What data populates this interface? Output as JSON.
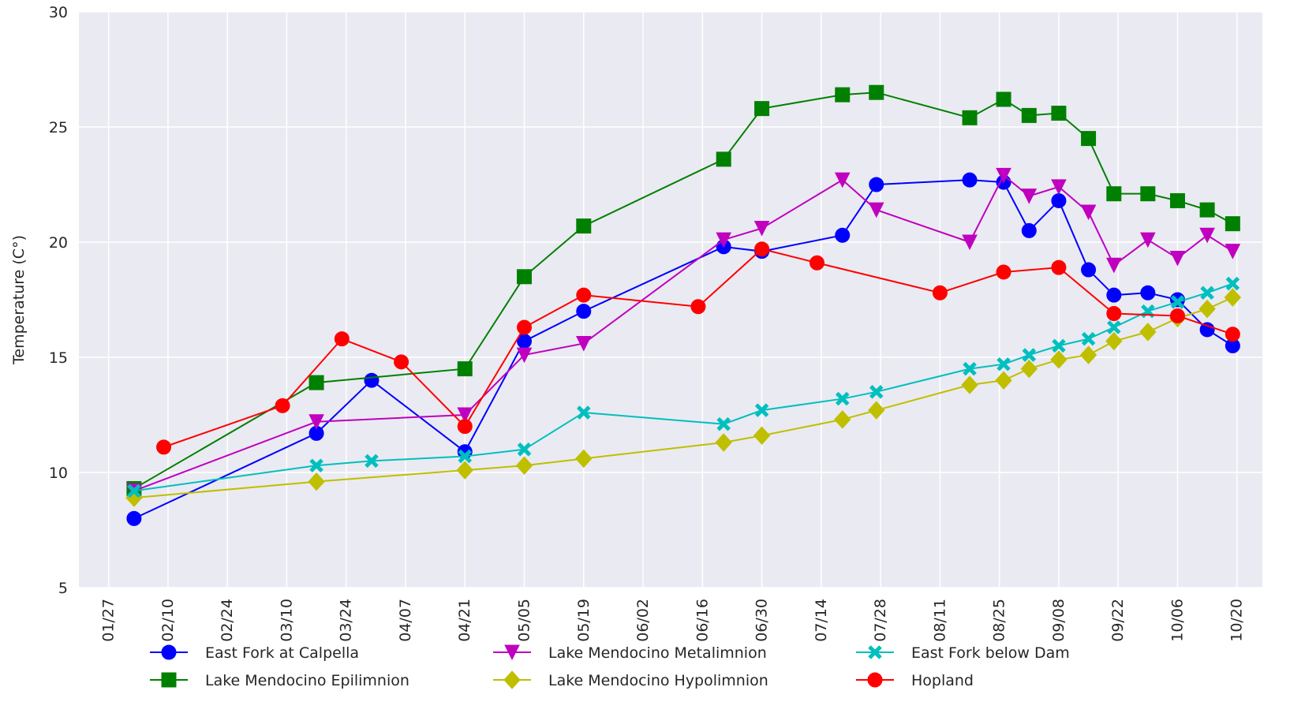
{
  "chart_data": {
    "type": "line",
    "ylabel": "Temperature (C°)",
    "ylim": [
      5,
      30
    ],
    "yticks": [
      5,
      10,
      15,
      20,
      25,
      30
    ],
    "xlim": [
      "01/20",
      "10/26"
    ],
    "xticks": [
      "01/27",
      "02/10",
      "02/24",
      "03/10",
      "03/24",
      "04/07",
      "04/21",
      "05/05",
      "05/19",
      "06/02",
      "06/16",
      "06/30",
      "07/14",
      "07/28",
      "08/11",
      "08/25",
      "09/08",
      "09/22",
      "10/06",
      "10/20"
    ],
    "grid": true,
    "legend": "lower center",
    "series": [
      {
        "name": "East Fork at Calpella",
        "color": "#0000ff",
        "marker": "circle",
        "x": [
          "02/02",
          "03/17",
          "03/30",
          "04/21",
          "05/05",
          "05/19",
          "06/21",
          "06/30",
          "07/19",
          "07/27",
          "08/18",
          "08/26",
          "09/01",
          "09/08",
          "09/15",
          "09/21",
          "09/29",
          "10/06",
          "10/13",
          "10/19"
        ],
        "values": [
          8.0,
          11.7,
          14.0,
          10.9,
          15.7,
          17.0,
          19.8,
          19.6,
          20.3,
          22.5,
          22.7,
          22.6,
          20.5,
          21.8,
          18.8,
          17.7,
          17.8,
          17.5,
          16.2,
          15.5
        ]
      },
      {
        "name": "Lake Mendocino Epilimnion",
        "color": "#008000",
        "marker": "square",
        "x": [
          "02/02",
          "03/17",
          "04/21",
          "05/05",
          "05/19",
          "06/21",
          "06/30",
          "07/19",
          "07/27",
          "08/18",
          "08/26",
          "09/01",
          "09/08",
          "09/15",
          "09/21",
          "09/29",
          "10/06",
          "10/13",
          "10/19"
        ],
        "values": [
          9.3,
          13.9,
          14.5,
          18.5,
          20.7,
          23.6,
          25.8,
          26.4,
          26.5,
          25.4,
          26.2,
          25.5,
          25.6,
          24.5,
          22.1,
          22.1,
          21.8,
          21.4,
          20.8
        ]
      },
      {
        "name": "Lake Mendocino Metalimnion",
        "color": "#bf00bf",
        "marker": "triangle-down",
        "x": [
          "02/02",
          "03/17",
          "04/21",
          "05/05",
          "05/19",
          "06/21",
          "06/30",
          "07/19",
          "07/27",
          "08/18",
          "08/26",
          "09/01",
          "09/08",
          "09/15",
          "09/21",
          "09/29",
          "10/06",
          "10/13",
          "10/19"
        ],
        "values": [
          9.2,
          12.2,
          12.5,
          15.1,
          15.6,
          20.1,
          20.6,
          22.7,
          21.4,
          20.0,
          22.9,
          22.0,
          22.4,
          21.3,
          19.0,
          20.1,
          19.3,
          20.3,
          19.6
        ]
      },
      {
        "name": "Lake Mendocino Hypolimnion",
        "color": "#bfbf00",
        "marker": "diamond",
        "x": [
          "02/02",
          "03/17",
          "04/21",
          "05/05",
          "05/19",
          "06/21",
          "06/30",
          "07/19",
          "07/27",
          "08/18",
          "08/26",
          "09/01",
          "09/08",
          "09/15",
          "09/21",
          "09/29",
          "10/06",
          "10/13",
          "10/19"
        ],
        "values": [
          8.9,
          9.6,
          10.1,
          10.3,
          10.6,
          11.3,
          11.6,
          12.3,
          12.7,
          13.8,
          14.0,
          14.5,
          14.9,
          15.1,
          15.7,
          16.1,
          16.7,
          17.1,
          17.6
        ]
      },
      {
        "name": "East Fork below Dam",
        "color": "#00bfbf",
        "marker": "x",
        "x": [
          "02/02",
          "03/17",
          "03/30",
          "04/21",
          "05/05",
          "05/19",
          "06/21",
          "06/30",
          "07/19",
          "07/27",
          "08/18",
          "08/26",
          "09/01",
          "09/08",
          "09/15",
          "09/21",
          "09/29",
          "10/06",
          "10/13",
          "10/19"
        ],
        "values": [
          9.2,
          10.3,
          10.5,
          10.7,
          11.0,
          12.6,
          12.1,
          12.7,
          13.2,
          13.5,
          14.5,
          14.7,
          15.1,
          15.5,
          15.8,
          16.3,
          17.0,
          17.4,
          17.8,
          18.2
        ]
      },
      {
        "name": "Hopland",
        "color": "#ff0000",
        "marker": "circle",
        "x": [
          "02/09",
          "03/09",
          "03/23",
          "04/06",
          "04/21",
          "05/05",
          "05/19",
          "06/15",
          "06/30",
          "07/13",
          "08/11",
          "08/26",
          "09/08",
          "09/21",
          "10/06",
          "10/19"
        ],
        "values": [
          11.1,
          12.9,
          15.8,
          14.8,
          12.0,
          16.3,
          17.7,
          17.2,
          19.7,
          19.1,
          17.8,
          18.7,
          18.9,
          16.9,
          16.8,
          16.0
        ]
      }
    ]
  }
}
